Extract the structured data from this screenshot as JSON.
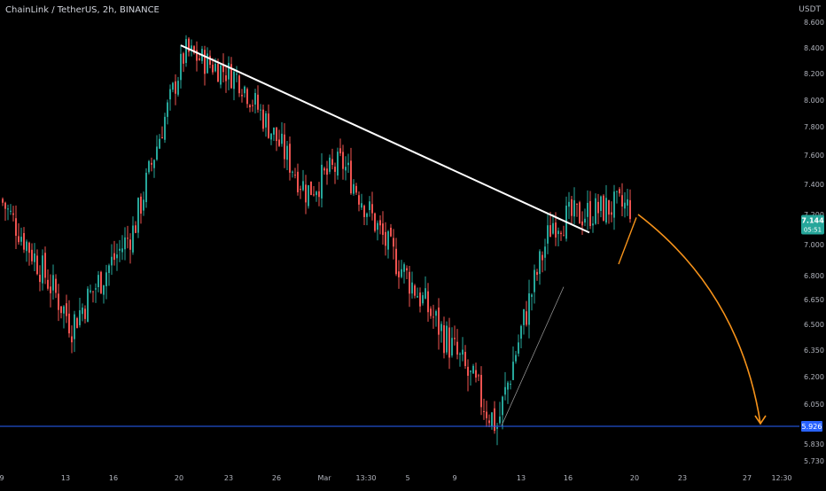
{
  "header": {
    "symbol": "ChainLink / TetherUS",
    "interval": "2h",
    "exchange": "BINANCE",
    "currency": "USDT"
  },
  "colors": {
    "background": "#000000",
    "up": "#26a69a",
    "down": "#ef5350",
    "trendline": "#ffffff",
    "support": "#2962ff",
    "projection": "#f7931a",
    "axis_text": "#b2b5be"
  },
  "chart_data": {
    "type": "candlestick",
    "y_axis": {
      "ticks": [
        5.73,
        5.83,
        5.926,
        6.05,
        6.2,
        6.35,
        6.5,
        6.65,
        6.8,
        7.0,
        7.2,
        7.4,
        7.6,
        7.8,
        8.0,
        8.2,
        8.4,
        8.6
      ],
      "tick_labels": [
        "5.730",
        "5.830",
        "5.926",
        "6.050",
        "6.200",
        "6.350",
        "6.500",
        "6.650",
        "6.800",
        "7.000",
        "7.200",
        "7.400",
        "7.600",
        "7.800",
        "8.000",
        "8.200",
        "8.400",
        "8.600"
      ]
    },
    "x_axis": {
      "tick_labels": [
        "9",
        "13",
        "16",
        "20",
        "23",
        "26",
        "Mar",
        "13:30",
        "5",
        "9",
        "13",
        "16",
        "20",
        "23",
        "27",
        "12:30"
      ]
    },
    "series": [
      {
        "segment": "start",
        "x": "9",
        "y": 7.3
      },
      {
        "segment": "pre-13",
        "x": "13",
        "y": 6.5
      },
      {
        "segment": "rise",
        "x": "16",
        "y": 7.1
      },
      {
        "segment": "peak",
        "x": "20",
        "y": 8.37
      },
      {
        "segment": "lower-high",
        "x": "23",
        "y": 8.17
      },
      {
        "segment": "decline",
        "x": "26",
        "y": 7.35
      },
      {
        "segment": "pre-drop",
        "x": "Mar",
        "y": 7.55
      },
      {
        "segment": "range",
        "x": "13:30",
        "y": 6.95
      },
      {
        "segment": "low",
        "x": "9",
        "y": 5.926
      },
      {
        "segment": "rebound",
        "x": "13",
        "y": 7.15
      },
      {
        "segment": "recent",
        "x": "16",
        "y": 7.25
      }
    ],
    "current_price": {
      "value": 7.144,
      "label": "7.144",
      "countdown": "05:51"
    },
    "support_level": {
      "value": 5.926,
      "label": "5.926"
    },
    "annotations": [
      {
        "type": "trendline",
        "from": {
          "x": "20",
          "y": 8.42
        },
        "to": {
          "x": "16",
          "y": 7.08
        }
      },
      {
        "type": "rising-line",
        "from": {
          "x": "9",
          "y": 5.93
        },
        "to": {
          "x": "16",
          "y": 6.73
        }
      },
      {
        "type": "projection-arrow",
        "from": {
          "x": "20",
          "y": 7.2
        },
        "to": {
          "x": "27",
          "y": 5.926
        }
      }
    ]
  }
}
